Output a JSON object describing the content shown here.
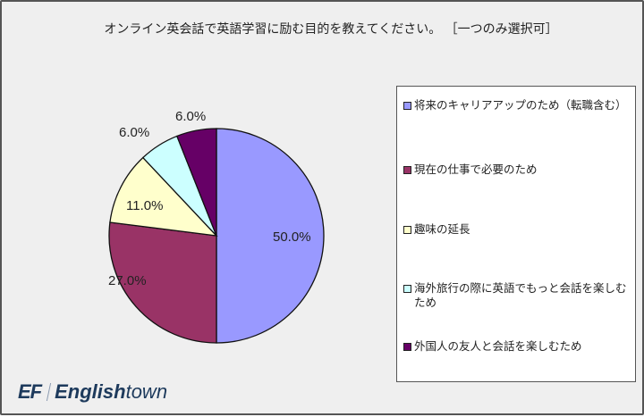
{
  "chart_data": {
    "type": "pie",
    "title": "オンライン英会話で英語学習に励む目的を教えてください。［一つのみ選択可］",
    "categories": [
      "将来のキャリアアップのため（転職含む）",
      "現在の仕事で必要のため",
      "趣味の延長",
      "海外旅行の際に英語でもっと会話を楽しむため",
      "外国人の友人と会話を楽しむため"
    ],
    "values": [
      50.0,
      27.0,
      11.0,
      6.0,
      6.0
    ],
    "labels": [
      "50.0%",
      "27.0%",
      "11.0%",
      "6.0%",
      "6.0%"
    ],
    "colors": [
      "#9999ff",
      "#993366",
      "#ffffcc",
      "#ccffff",
      "#660066"
    ],
    "legend_position": "right",
    "start_angle": "12 o'clock",
    "direction": "clockwise"
  },
  "title": "オンライン英会話で英語学習に励む目的を教えてください。 ［一つのみ選択可］",
  "legend": {
    "items": [
      {
        "label": "将来のキャリアアップのため（転職含む）",
        "color": "#9999ff"
      },
      {
        "label": "現在の仕事で必要のため",
        "color": "#993366"
      },
      {
        "label": "趣味の延長",
        "color": "#ffffcc"
      },
      {
        "label": "海外旅行の際に英語でもっと会話を楽しむため",
        "color": "#ccffff"
      },
      {
        "label": "外国人の友人と会話を楽しむため",
        "color": "#660066"
      }
    ]
  },
  "logo": {
    "ef": "EF",
    "english": "English",
    "town": "town"
  }
}
